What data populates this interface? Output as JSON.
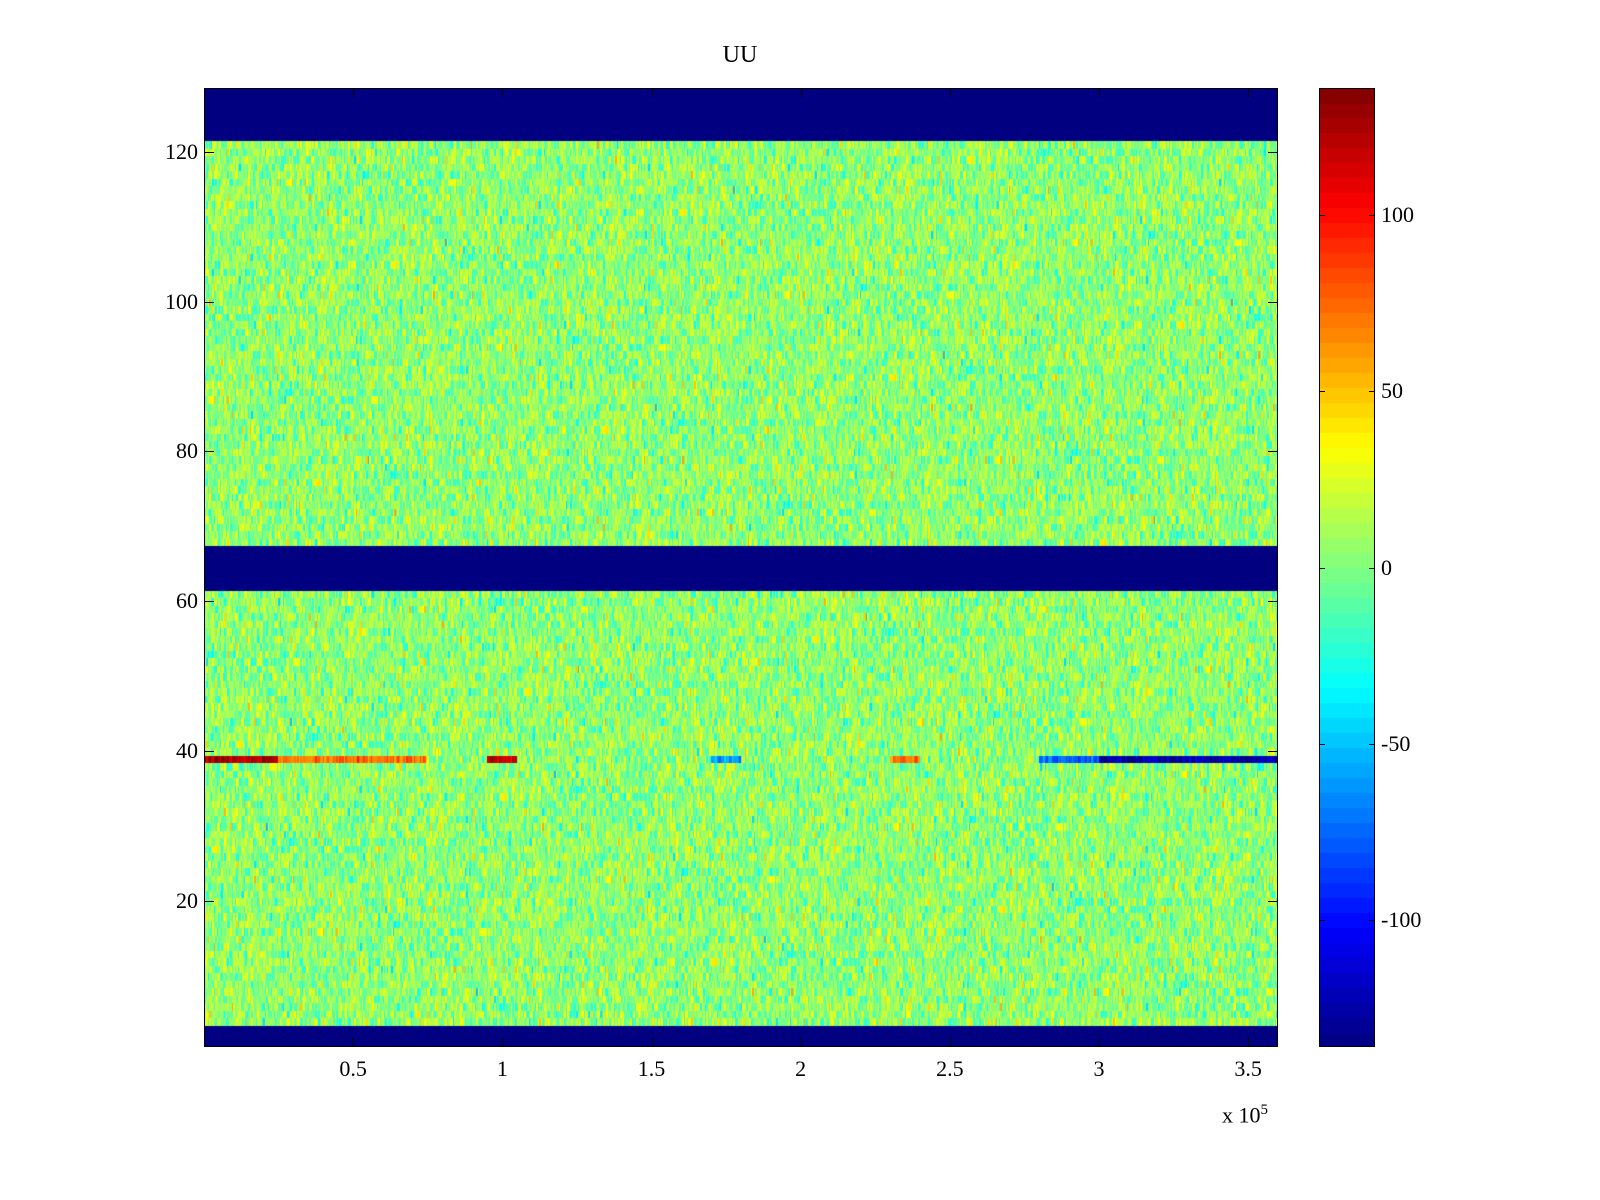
{
  "chart_data": {
    "type": "heatmap",
    "title": "UU",
    "xlabel": "",
    "ylabel": "",
    "x_multiplier": "x 10",
    "x_multiplier_exponent": "5",
    "xlim": [
      0,
      3.6
    ],
    "ylim": [
      0.5,
      128.5
    ],
    "xticks": [
      "0.5",
      "1",
      "1.5",
      "2",
      "2.5",
      "3",
      "3.5"
    ],
    "xtick_values": [
      0.5,
      1,
      1.5,
      2,
      2.5,
      3,
      3.5
    ],
    "yticks": [
      "20",
      "40",
      "60",
      "80",
      "100",
      "120"
    ],
    "ytick_values": [
      20,
      40,
      60,
      80,
      100,
      120
    ],
    "colormap": "jet",
    "clim": [
      -136,
      136
    ],
    "colorbar_ticks": [
      "100",
      "50",
      "0",
      "-50",
      "-100"
    ],
    "colorbar_tick_values": [
      100,
      50,
      0,
      -50,
      -100
    ],
    "rows": 128,
    "masked_rows_min_value": [
      [
        1,
        3
      ],
      [
        62,
        67
      ],
      [
        122,
        128
      ]
    ],
    "background_noise": {
      "mean": 0,
      "std": 18
    },
    "highlight_row": {
      "row": 39,
      "segments": [
        {
          "x": [
            0,
            0.25
          ],
          "value": 125
        },
        {
          "x": [
            0.25,
            0.75
          ],
          "value": 70
        },
        {
          "x": [
            0.95,
            1.05
          ],
          "value": 115
        },
        {
          "x": [
            1.7,
            1.8
          ],
          "value": -60
        },
        {
          "x": [
            2.3,
            2.4
          ],
          "value": 70
        },
        {
          "x": [
            2.8,
            3.0
          ],
          "value": -75
        },
        {
          "x": [
            3.0,
            3.6
          ],
          "value": -125
        }
      ]
    }
  }
}
